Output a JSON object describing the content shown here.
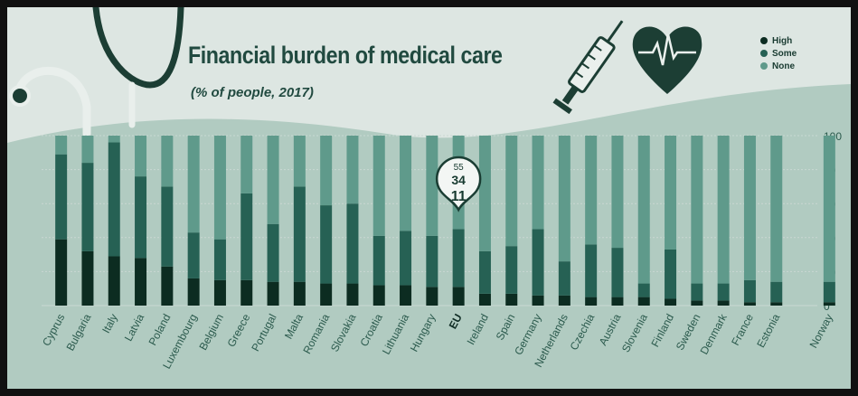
{
  "title": "Financial burden of medical care",
  "subtitle": "(% of people, 2017)",
  "legend": [
    {
      "label": "High",
      "color": "#0c2c21"
    },
    {
      "label": "Some",
      "color": "#266154"
    },
    {
      "label": "None",
      "color": "#5f9a8b"
    }
  ],
  "callout": {
    "none": "55",
    "some": "34",
    "high": "11"
  },
  "chart_data": {
    "type": "bar",
    "stacked": true,
    "categories": [
      "Cyprus",
      "Bulgaria",
      "Italy",
      "Latvia",
      "Poland",
      "Luxembourg",
      "Belgium",
      "Greece",
      "Portugal",
      "Malta",
      "Romania",
      "Slovakia",
      "Croatia",
      "Lithuania",
      "Hungary",
      "EU",
      "Ireland",
      "Spain",
      "Germany",
      "Netherlands",
      "Czechia",
      "Austria",
      "Slovenia",
      "Finland",
      "Sweden",
      "Denmark",
      "France",
      "Estonia",
      "",
      "Norway"
    ],
    "series": [
      {
        "name": "High",
        "values": [
          39,
          32,
          29,
          28,
          23,
          16,
          15,
          15,
          14,
          14,
          13,
          13,
          12,
          12,
          11,
          11,
          7,
          7,
          6,
          6,
          5,
          5,
          5,
          4,
          3,
          3,
          2,
          2,
          null,
          2
        ]
      },
      {
        "name": "Some",
        "values": [
          50,
          52,
          67,
          48,
          47,
          27,
          24,
          51,
          34,
          56,
          46,
          47,
          29,
          32,
          30,
          34,
          25,
          28,
          39,
          20,
          31,
          29,
          8,
          29,
          10,
          10,
          13,
          12,
          null,
          12
        ]
      },
      {
        "name": "None",
        "values": [
          11,
          16,
          4,
          24,
          30,
          57,
          61,
          34,
          52,
          30,
          41,
          40,
          59,
          56,
          59,
          55,
          68,
          65,
          55,
          74,
          64,
          66,
          87,
          67,
          87,
          87,
          85,
          86,
          null,
          86
        ]
      }
    ],
    "highlight": "EU",
    "ylim": [
      0,
      100
    ],
    "yticks": [
      0,
      20,
      40,
      60,
      80,
      100
    ],
    "grid": true,
    "legend_position": "top-right"
  }
}
